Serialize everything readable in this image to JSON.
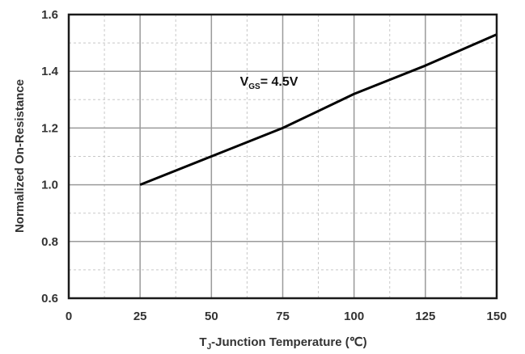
{
  "chart_data": {
    "type": "line",
    "xlabel": {
      "prefix": "T",
      "subscript": "J",
      "rest": "-Junction Temperature (℃)"
    },
    "ylabel": "Normalized On-Resistance",
    "xlim": [
      0,
      150
    ],
    "ylim": [
      0.6,
      1.6
    ],
    "x_ticks": [
      0,
      25,
      50,
      75,
      100,
      125,
      150
    ],
    "x_tick_labels": [
      "0",
      "25",
      "50",
      "75",
      "100",
      "125",
      "150"
    ],
    "y_ticks": [
      0.6,
      0.8,
      1.0,
      1.2,
      1.4,
      1.6
    ],
    "y_tick_labels": [
      "0.6",
      "0.8",
      "1.0",
      "1.2",
      "1.4",
      "1.6"
    ],
    "grid": true,
    "series": [
      {
        "x": [
          25,
          50,
          75,
          100,
          125,
          150
        ],
        "y": [
          1.0,
          1.1,
          1.2,
          1.32,
          1.42,
          1.53
        ]
      }
    ],
    "annotation": {
      "main": "V",
      "sub": "GS",
      "rest": "= 4.5V",
      "x": 60,
      "y": 1.35
    },
    "colors": {
      "line": "#000000",
      "grid": "#9a9a9a",
      "minor_grid": "#c8c8c8",
      "frame": "#1a1a1a",
      "text": "#333333"
    }
  }
}
